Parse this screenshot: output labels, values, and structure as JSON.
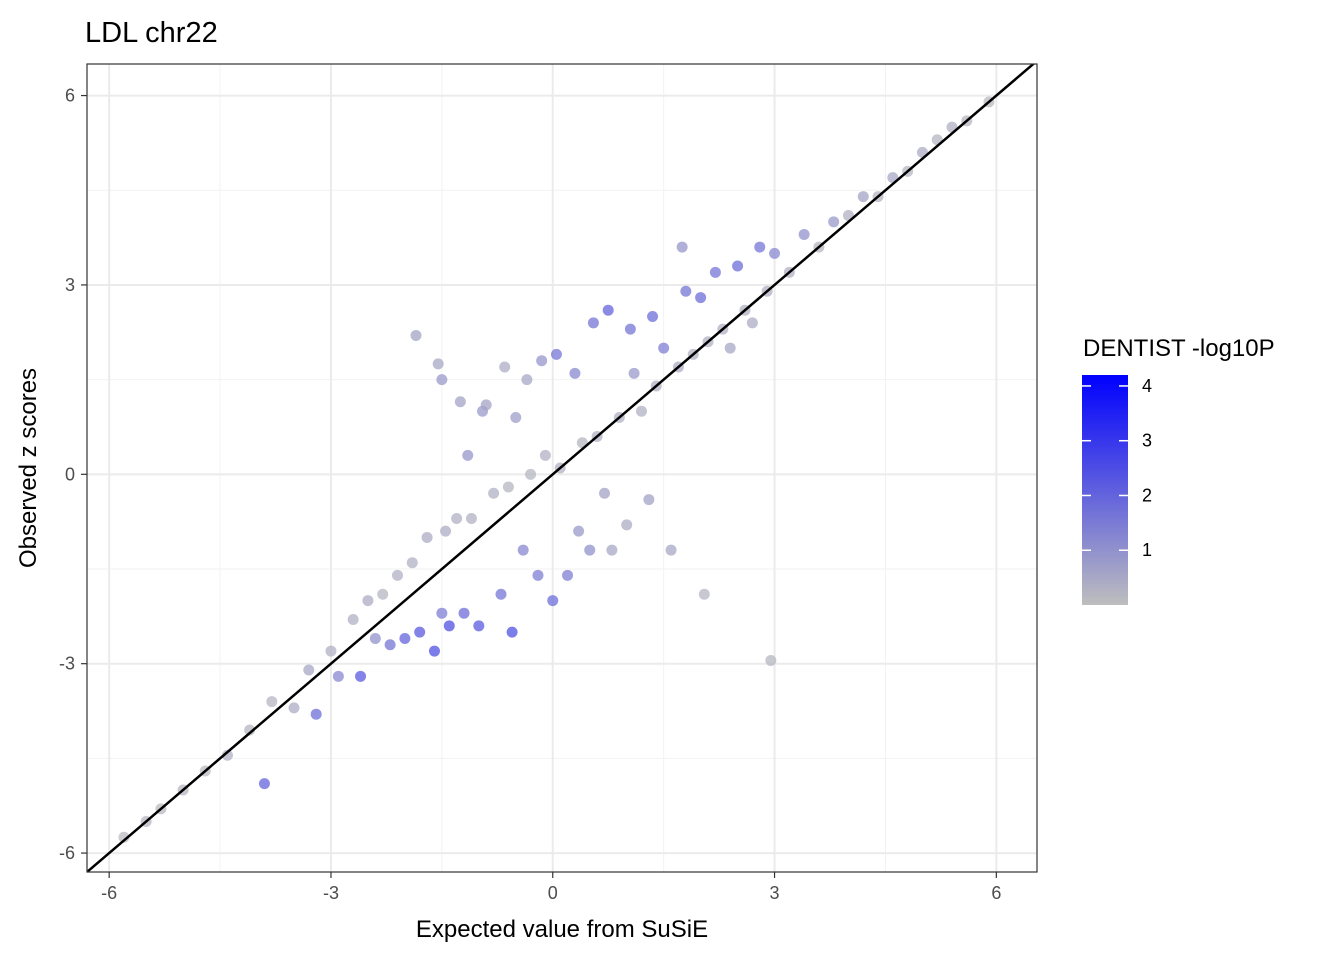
{
  "chart_data": {
    "type": "scatter",
    "title": "LDL chr22",
    "xlabel": "Expected value from SuSiE",
    "ylabel": "Observed z scores",
    "xlim": [
      -6.3,
      6.55
    ],
    "ylim": [
      -6.3,
      6.5
    ],
    "x_ticks": [
      -6,
      -3,
      0,
      3,
      6
    ],
    "y_ticks": [
      -6,
      -3,
      0,
      3,
      6
    ],
    "x_tick_labels": [
      "-6",
      "-3",
      "0",
      "3",
      "6"
    ],
    "y_tick_labels": [
      "-6",
      "-3",
      "0",
      "3",
      "6"
    ],
    "grid": true,
    "reference_line": {
      "intercept": 0,
      "slope": 1
    },
    "legend": {
      "title": "DENTIST -log10P",
      "position": "right",
      "breaks": [
        1,
        2,
        3,
        4
      ],
      "break_labels": [
        "1",
        "2",
        "3",
        "4"
      ],
      "range": [
        0,
        4.2
      ],
      "low_color": "#bebebe",
      "high_color": "#0000ff"
    },
    "points": [
      [
        -5.8,
        -5.75,
        0.1
      ],
      [
        -5.5,
        -5.5,
        0.2
      ],
      [
        -5.3,
        -5.3,
        0.1
      ],
      [
        -5.0,
        -5.0,
        0.2
      ],
      [
        -4.7,
        -4.7,
        0.1
      ],
      [
        -4.4,
        -4.45,
        0.3
      ],
      [
        -4.1,
        -4.05,
        0.2
      ],
      [
        -3.9,
        -4.9,
        2.0
      ],
      [
        -3.8,
        -3.6,
        0.2
      ],
      [
        -3.5,
        -3.7,
        0.4
      ],
      [
        -3.3,
        -3.1,
        0.5
      ],
      [
        -3.2,
        -3.8,
        1.8
      ],
      [
        -3.0,
        -2.8,
        0.3
      ],
      [
        -2.9,
        -3.2,
        1.2
      ],
      [
        -2.7,
        -2.3,
        0.3
      ],
      [
        -2.6,
        -3.2,
        2.2
      ],
      [
        -2.5,
        -2.0,
        0.4
      ],
      [
        -2.4,
        -2.6,
        1.0
      ],
      [
        -2.3,
        -1.9,
        0.2
      ],
      [
        -2.2,
        -2.7,
        1.6
      ],
      [
        -2.1,
        -1.6,
        0.3
      ],
      [
        -2.0,
        -2.6,
        2.0
      ],
      [
        -1.9,
        -1.4,
        0.3
      ],
      [
        -1.85,
        2.2,
        0.6
      ],
      [
        -1.8,
        -2.5,
        2.2
      ],
      [
        -1.7,
        -1.0,
        0.4
      ],
      [
        -1.6,
        -2.8,
        2.4
      ],
      [
        -1.55,
        1.75,
        0.5
      ],
      [
        -1.5,
        -2.2,
        1.4
      ],
      [
        -1.5,
        1.5,
        0.8
      ],
      [
        -1.45,
        -0.9,
        0.4
      ],
      [
        -1.4,
        -2.4,
        2.4
      ],
      [
        -1.3,
        -0.7,
        0.3
      ],
      [
        -1.25,
        1.15,
        0.6
      ],
      [
        -1.2,
        -2.2,
        1.8
      ],
      [
        -1.15,
        0.3,
        0.9
      ],
      [
        -1.1,
        -0.7,
        0.3
      ],
      [
        -1.0,
        -2.4,
        2.2
      ],
      [
        -0.95,
        1.0,
        0.8
      ],
      [
        -0.9,
        1.1,
        0.6
      ],
      [
        -0.8,
        -0.3,
        0.3
      ],
      [
        -0.7,
        -1.9,
        1.6
      ],
      [
        -0.65,
        1.7,
        0.4
      ],
      [
        -0.6,
        -0.2,
        0.2
      ],
      [
        -0.55,
        -2.5,
        2.4
      ],
      [
        -0.5,
        0.9,
        0.7
      ],
      [
        -0.4,
        -1.2,
        1.2
      ],
      [
        -0.35,
        1.5,
        0.5
      ],
      [
        -0.3,
        0.0,
        0.2
      ],
      [
        -0.2,
        -1.6,
        1.4
      ],
      [
        -0.15,
        1.8,
        0.9
      ],
      [
        -0.1,
        0.3,
        0.3
      ],
      [
        0.0,
        -2.0,
        1.8
      ],
      [
        0.05,
        1.9,
        1.6
      ],
      [
        0.1,
        0.1,
        0.3
      ],
      [
        0.2,
        -1.6,
        1.4
      ],
      [
        0.3,
        1.6,
        1.2
      ],
      [
        0.35,
        -0.9,
        0.8
      ],
      [
        0.4,
        0.5,
        0.2
      ],
      [
        0.5,
        -1.2,
        1.0
      ],
      [
        0.55,
        2.4,
        1.6
      ],
      [
        0.6,
        0.6,
        0.3
      ],
      [
        0.7,
        -0.3,
        0.6
      ],
      [
        0.75,
        2.6,
        2.0
      ],
      [
        0.8,
        -1.2,
        0.5
      ],
      [
        0.9,
        0.9,
        0.3
      ],
      [
        1.0,
        -0.8,
        0.4
      ],
      [
        1.05,
        2.3,
        1.6
      ],
      [
        1.1,
        1.6,
        0.8
      ],
      [
        1.2,
        1.0,
        0.3
      ],
      [
        1.3,
        -0.4,
        0.6
      ],
      [
        1.35,
        2.5,
        1.8
      ],
      [
        1.4,
        1.4,
        0.3
      ],
      [
        1.5,
        2.0,
        1.4
      ],
      [
        1.6,
        -1.2,
        0.5
      ],
      [
        1.7,
        1.7,
        0.4
      ],
      [
        1.75,
        3.6,
        0.9
      ],
      [
        1.8,
        2.9,
        1.6
      ],
      [
        1.9,
        1.9,
        0.3
      ],
      [
        2.0,
        2.8,
        1.8
      ],
      [
        2.05,
        -1.9,
        0.2
      ],
      [
        2.1,
        2.1,
        0.3
      ],
      [
        2.2,
        3.2,
        1.6
      ],
      [
        2.3,
        2.3,
        0.3
      ],
      [
        2.4,
        2.0,
        0.5
      ],
      [
        2.5,
        3.3,
        1.8
      ],
      [
        2.6,
        2.6,
        0.3
      ],
      [
        2.7,
        2.4,
        0.4
      ],
      [
        2.8,
        3.6,
        1.6
      ],
      [
        2.9,
        2.9,
        0.3
      ],
      [
        2.95,
        -2.95,
        0.2
      ],
      [
        3.0,
        3.5,
        1.2
      ],
      [
        3.2,
        3.2,
        0.3
      ],
      [
        3.4,
        3.8,
        1.0
      ],
      [
        3.6,
        3.6,
        0.2
      ],
      [
        3.8,
        4.0,
        0.8
      ],
      [
        4.0,
        4.1,
        0.3
      ],
      [
        4.2,
        4.4,
        0.6
      ],
      [
        4.4,
        4.4,
        0.2
      ],
      [
        4.6,
        4.7,
        0.5
      ],
      [
        4.8,
        4.8,
        0.2
      ],
      [
        5.0,
        5.1,
        0.4
      ],
      [
        5.2,
        5.3,
        0.2
      ],
      [
        5.4,
        5.5,
        0.3
      ],
      [
        5.6,
        5.6,
        0.2
      ],
      [
        5.9,
        5.9,
        0.1
      ]
    ]
  }
}
